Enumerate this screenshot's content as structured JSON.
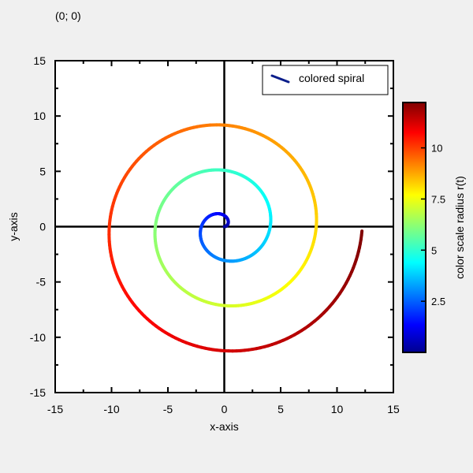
{
  "readout": {
    "coordinate": "(0; 0)"
  },
  "chart_data": {
    "type": "line",
    "title": "",
    "xlabel": "x-axis",
    "ylabel": "y-axis",
    "xlim": [
      -15,
      15
    ],
    "ylim": [
      -15,
      15
    ],
    "xticks": [
      -15,
      -10,
      -5,
      0,
      5,
      10,
      15
    ],
    "yticks": [
      -15,
      -10,
      -5,
      0,
      5,
      10,
      15
    ],
    "xtick_labels": [
      "-15",
      "-10",
      "-5",
      "0",
      "5",
      "10",
      "15"
    ],
    "ytick_labels": [
      "-15",
      "-10",
      "-5",
      "0",
      "5",
      "10",
      "15"
    ],
    "zero_axes": true,
    "grid": false,
    "legend": {
      "position": "top-right",
      "entries": [
        {
          "label": "colored spiral",
          "color": "#0a1d8a"
        }
      ]
    },
    "series": [
      {
        "name": "colored spiral",
        "curve": "archimedean spiral r = a·t, colored by r",
        "t_start": 0,
        "t_end": 18.8,
        "a": 0.65,
        "r_max": 12.22,
        "end_point": [
          12.2,
          -0.4
        ],
        "color_by": "radius"
      }
    ],
    "colorbar": {
      "label": "color scale radius r(t)",
      "colormap": "jet",
      "range": [
        0,
        12.22
      ],
      "ticks": [
        2.5,
        5,
        7.5,
        10
      ],
      "tick_labels": [
        "2.5",
        "5",
        "7.5",
        "10"
      ],
      "colormap_stops": [
        "#00008f",
        "#0000ff",
        "#00ffff",
        "#ffff00",
        "#ff0000",
        "#800000"
      ]
    }
  }
}
